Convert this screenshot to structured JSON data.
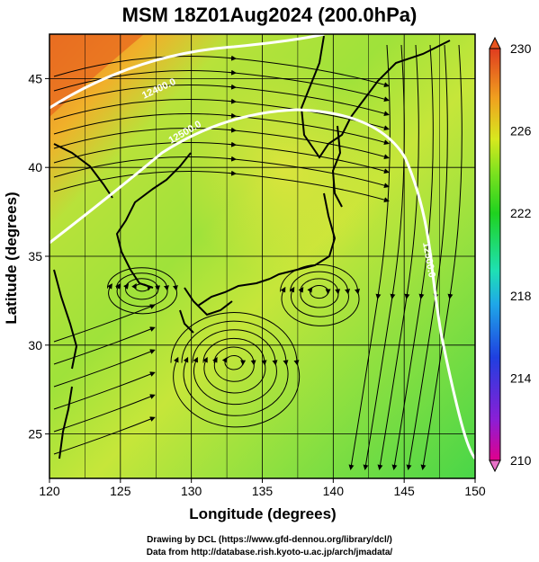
{
  "title": "MSM 18Z01Aug2024 (200.0hPa)",
  "x_axis": {
    "label": "Longitude (degrees)",
    "ticks": [
      "120",
      "125",
      "130",
      "135",
      "140",
      "145",
      "150"
    ],
    "range": [
      120,
      150
    ]
  },
  "y_axis": {
    "label": "Latitude  (degrees)",
    "ticks": [
      "25",
      "30",
      "35",
      "40",
      "45"
    ],
    "range": [
      22.5,
      47.5
    ]
  },
  "colorbar": {
    "labels": [
      "230",
      "226",
      "222",
      "218",
      "214",
      "210"
    ],
    "range": [
      210,
      230
    ],
    "colors": [
      "#e0008c",
      "#8a1fd6",
      "#1f3fe0",
      "#1fa8e8",
      "#1fe0b4",
      "#1fd21f",
      "#7fe21f",
      "#d7e81f",
      "#f0a01f",
      "#e8541f",
      "#e03c1f"
    ]
  },
  "contour_labels": [
    "12400.0",
    "12500.0",
    "12500.0"
  ],
  "credits": {
    "line1": "Drawing by DCL (https://www.gfd-dennou.org/library/dcl/)",
    "line2": "Data from http://database.rish.kyoto-u.ac.jp/arch/jmadata/"
  }
}
